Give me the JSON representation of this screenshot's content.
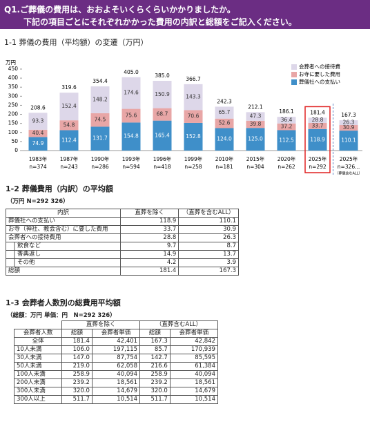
{
  "header": {
    "title": "Q1.ご葬儀の費用は、おおよそいくらくらいかかりましたか。",
    "subtitle": "下記の項目ごとにそれぞれかかった費用の内訳と総額をご記入ください。"
  },
  "chart_data": {
    "type": "bar",
    "stacked": true,
    "title": "1-1 葬儀の費用（平均額）の変遷（万円）",
    "y_unit": "万円",
    "categories": [
      "1983年",
      "1987年",
      "1990年",
      "1993年",
      "1996年",
      "1999年",
      "2010年",
      "2015年",
      "2020年",
      "2025年",
      "2025年"
    ],
    "sample_sizes": [
      "n=374",
      "n=243",
      "n=286",
      "n=594",
      "n=418",
      "n=258",
      "n=181",
      "n=304",
      "n=262",
      "n=292",
      "n=326..."
    ],
    "last_note": "（葬儀含むALL）",
    "highlight_index": 9,
    "series": [
      {
        "name": "葬儀社への支払い",
        "color": "#3f8fc9",
        "values": [
          74.9,
          112.4,
          131.7,
          154.8,
          165.4,
          152.8,
          124.0,
          125.0,
          112.5,
          118.9,
          110.1
        ],
        "value_labels": [
          "74.9",
          "112.4",
          "131.7",
          "154.8",
          "165.4",
          "152.8",
          "124.0",
          "125.0",
          "112.5",
          "118.9",
          "110.1"
        ]
      },
      {
        "name": "お寺に要した費用",
        "color": "#e8a6a6",
        "values": [
          40.4,
          54.8,
          74.5,
          75.6,
          68.7,
          70.6,
          52.6,
          39.8,
          37.2,
          33.7,
          30.9
        ]
      },
      {
        "name": "会葬者への接待費",
        "color": "#ddd7e9",
        "values": [
          93.3,
          152.4,
          148.2,
          174.6,
          150.9,
          143.3,
          65.7,
          47.3,
          36.4,
          28.8,
          26.3
        ]
      }
    ],
    "totals": [
      208.6,
      319.6,
      354.4,
      405.0,
      385.0,
      366.7,
      242.3,
      212.1,
      186.1,
      181.4,
      167.3
    ],
    "total_labels": [
      "208.6",
      "319.6",
      "354.4",
      "405.0",
      "385.0",
      "366.7",
      "242.3",
      "212.1",
      "186.1",
      "181.4",
      "167.3"
    ],
    "ylim": [
      0,
      450
    ],
    "yticks": [
      0,
      50,
      100,
      150,
      200,
      250,
      300,
      350,
      400,
      450
    ],
    "grid": false,
    "legend": "top-right"
  },
  "table1": {
    "title": "1-2 葬儀費用（内訳）の平均額",
    "note": "（万円 N=292 326）",
    "columns": [
      "内訳",
      "直葬を除く",
      "（直葬を含むALL）"
    ],
    "rows": [
      {
        "cells": [
          "葬儀社への支払い",
          "118.9",
          "110.1"
        ]
      },
      {
        "cells": [
          "お寺（神社、教会含む）に要した費用",
          "33.7",
          "30.9"
        ]
      },
      {
        "cells": [
          "会葬者への接待費用",
          "28.8",
          "26.3"
        ]
      },
      {
        "cells": [
          "飲食など",
          "9.7",
          "8.7"
        ],
        "sub": true
      },
      {
        "cells": [
          "香典返し",
          "14.9",
          "13.7"
        ],
        "sub": true
      },
      {
        "cells": [
          "その他",
          "4.2",
          "3.9"
        ],
        "sub": true
      },
      {
        "cells": [
          "総額",
          "181.4",
          "167.3"
        ]
      }
    ]
  },
  "table2": {
    "title": "1-3 会葬者人数別の総費用平均額",
    "note": "（総額：万円 単価：円　N=292 326）",
    "group_headers": [
      "直葬を除く",
      "（直葬含むALL）"
    ],
    "columns": [
      "会葬者人数",
      "総額",
      "会葬者単価",
      "総額",
      "会葬者単価"
    ],
    "rows": [
      [
        "全体",
        "181.4",
        "42,401",
        "167.3",
        "42,842"
      ],
      [
        "10人未満",
        "106.0",
        "197,115",
        "85.7",
        "170,939"
      ],
      [
        "30人未満",
        "147.0",
        "87,754",
        "142.7",
        "85,595"
      ],
      [
        "50人未満",
        "219.0",
        "62,058",
        "216.6",
        "61,384"
      ],
      [
        "100人未満",
        "258.9",
        "40,094",
        "258.9",
        "40,094"
      ],
      [
        "200人未満",
        "239.2",
        "18,561",
        "239.2",
        "18,561"
      ],
      [
        "300人未満",
        "320.0",
        "14,679",
        "320.0",
        "14,679"
      ],
      [
        "300人以上",
        "511.7",
        "10,514",
        "511.7",
        "10,514"
      ]
    ]
  }
}
